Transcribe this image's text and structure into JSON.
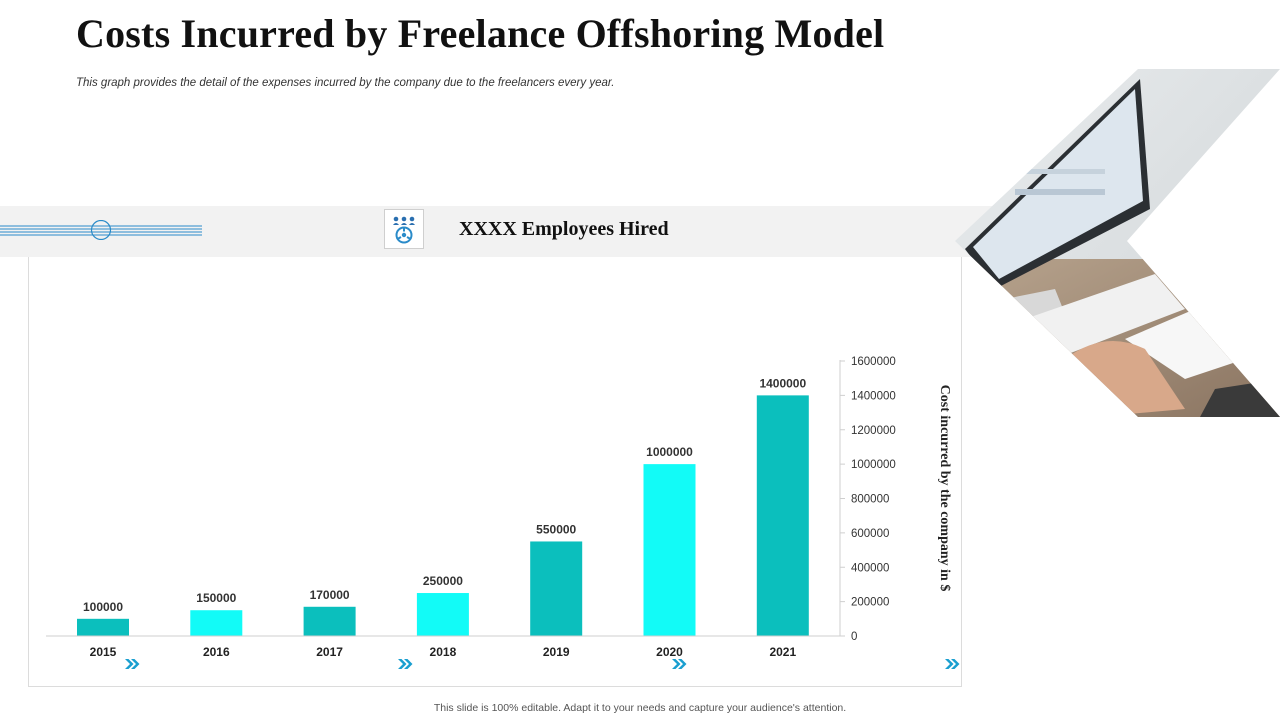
{
  "header": {
    "title": "Costs Incurred by Freelance Offshoring Model",
    "subtitle": "This graph provides the detail of the expenses incurred by the company due to the freelancers every year."
  },
  "band": {
    "label": "XXXX Employees Hired",
    "icon": "team-icon"
  },
  "footer": {
    "note": "This slide is 100% editable. Adapt it to your needs and capture your audience's attention."
  },
  "colors": {
    "teal": "#0bbfbd",
    "cyan": "#12fbf7",
    "accent_blue": "#2a8bc9"
  },
  "chart_data": {
    "type": "bar",
    "title": "",
    "categories": [
      "2015",
      "2016",
      "2017",
      "2018",
      "2019",
      "2020",
      "2021"
    ],
    "values": [
      100000,
      150000,
      170000,
      250000,
      550000,
      1000000,
      1400000
    ],
    "data_labels": [
      "100000",
      "150000",
      "170000",
      "250000",
      "550000",
      "1000000",
      "1400000"
    ],
    "y_ticks": [
      "0",
      "200000",
      "400000",
      "600000",
      "800000",
      "1000000",
      "1200000",
      "1400000",
      "1600000"
    ],
    "ylim": [
      0,
      1600000
    ],
    "xlabel": "",
    "ylabel": "Cost incurred by the company in $",
    "y_axis_side": "right",
    "grid": false,
    "legend": "none"
  }
}
